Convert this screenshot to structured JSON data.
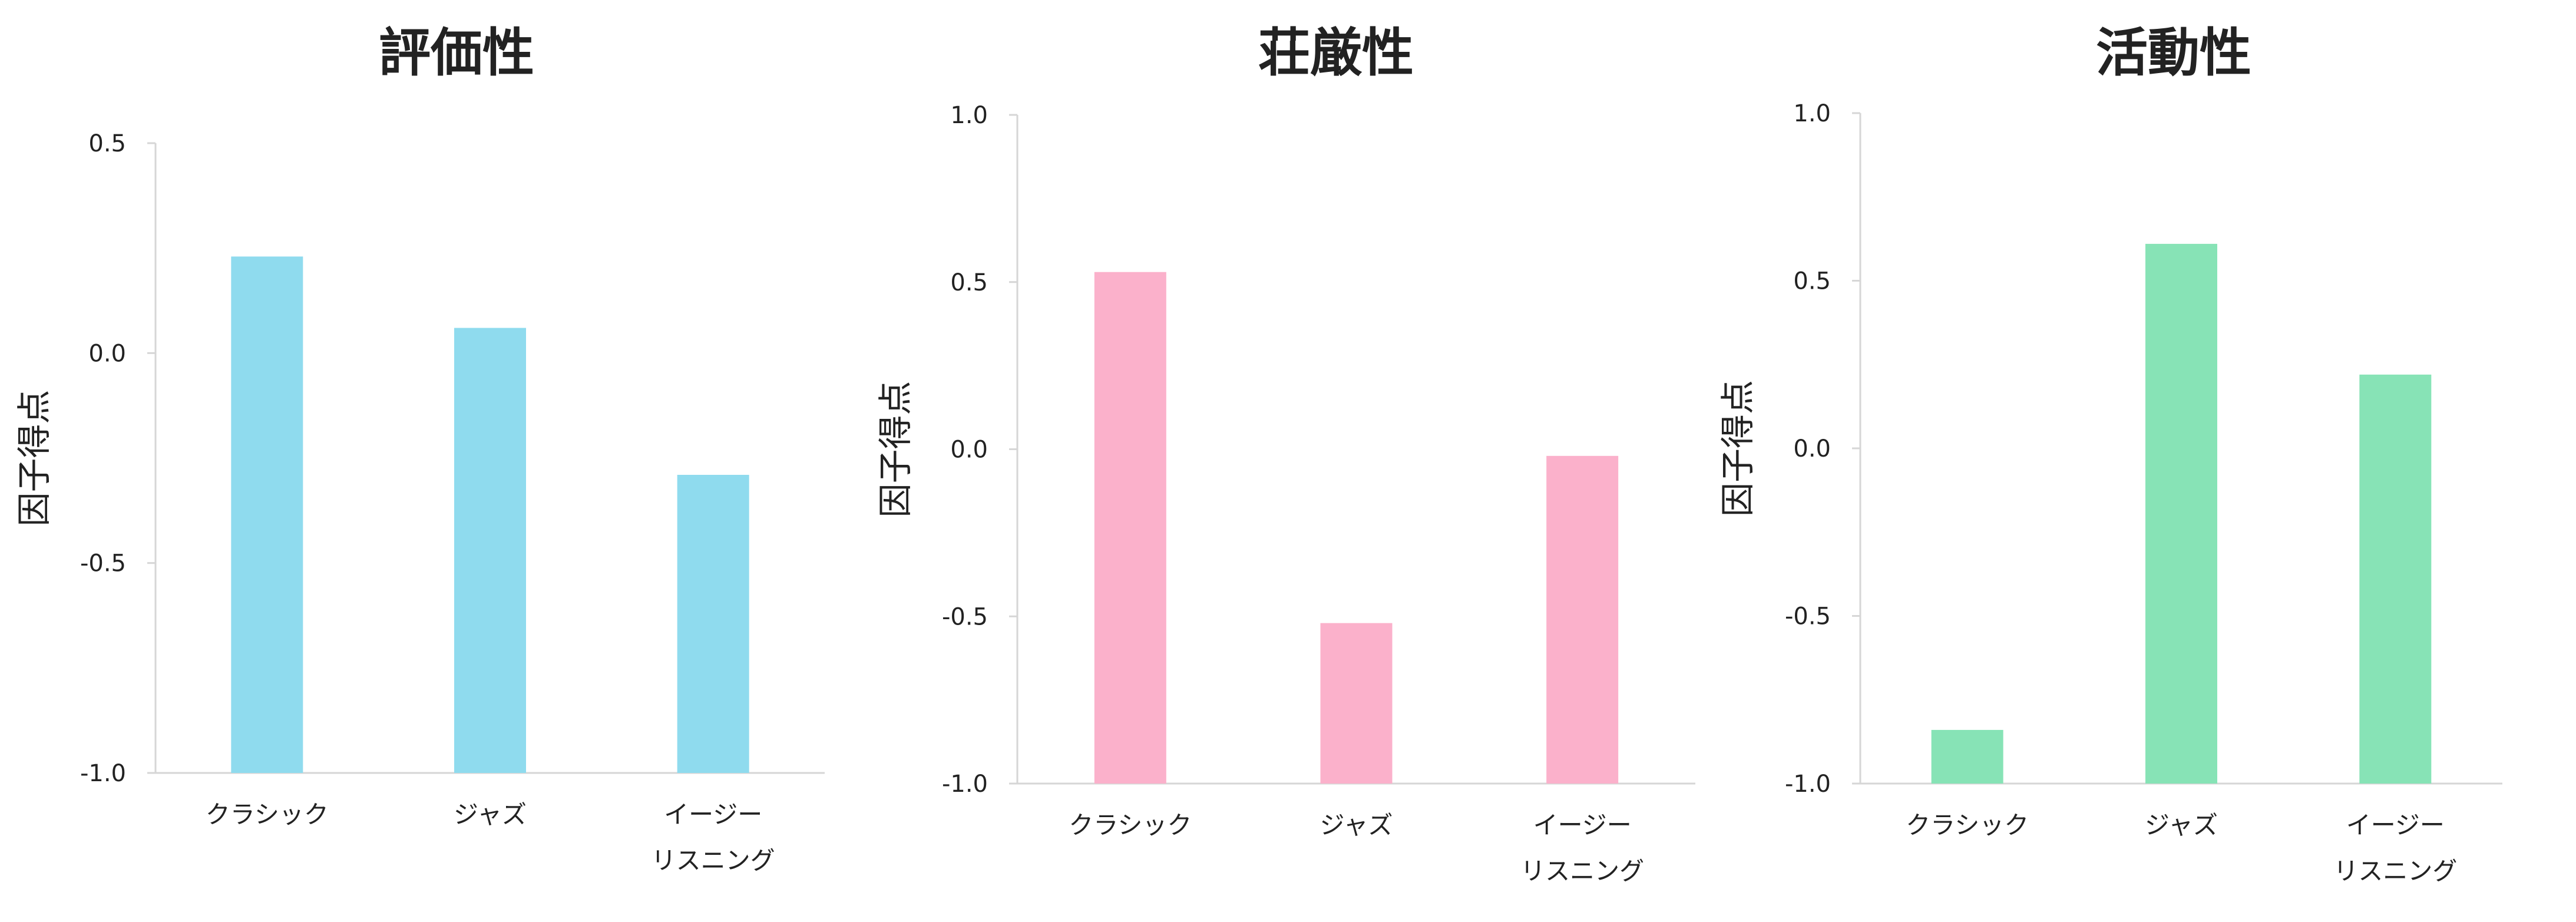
{
  "chart_data": [
    {
      "type": "bar",
      "title": "評価性",
      "ylabel": "因子得点",
      "categories": [
        [
          "クラシック"
        ],
        [
          "ジャズ"
        ],
        [
          "イージー",
          "リスニング"
        ]
      ],
      "values": [
        0.23,
        0.06,
        -0.29
      ],
      "ylim": [
        -1.0,
        0.5
      ],
      "yticks": [
        "0.5",
        "0.0",
        "-0.5",
        "-1.0"
      ],
      "color": "#8fdbee",
      "grid": false
    },
    {
      "type": "bar",
      "title": "荘厳性",
      "ylabel": "因子得点",
      "categories": [
        [
          "クラシック"
        ],
        [
          "ジャズ"
        ],
        [
          "イージー",
          "リスニング"
        ]
      ],
      "values": [
        0.53,
        -0.52,
        -0.02
      ],
      "ylim": [
        -1.0,
        1.0
      ],
      "yticks": [
        "1.0",
        "0.5",
        "0.0",
        "-0.5",
        "-1.0"
      ],
      "color": "#fbb1cb",
      "grid": false
    },
    {
      "type": "bar",
      "title": "活動性",
      "ylabel": "因子得点",
      "categories": [
        [
          "クラシック"
        ],
        [
          "ジャズ"
        ],
        [
          "イージー",
          "リスニング"
        ]
      ],
      "values": [
        -0.84,
        0.61,
        0.22
      ],
      "ylim": [
        -1.0,
        1.0
      ],
      "yticks": [
        "1.0",
        "0.5",
        "0.0",
        "-0.5",
        "-1.0"
      ],
      "color": "#87e3b6",
      "grid": false
    }
  ]
}
